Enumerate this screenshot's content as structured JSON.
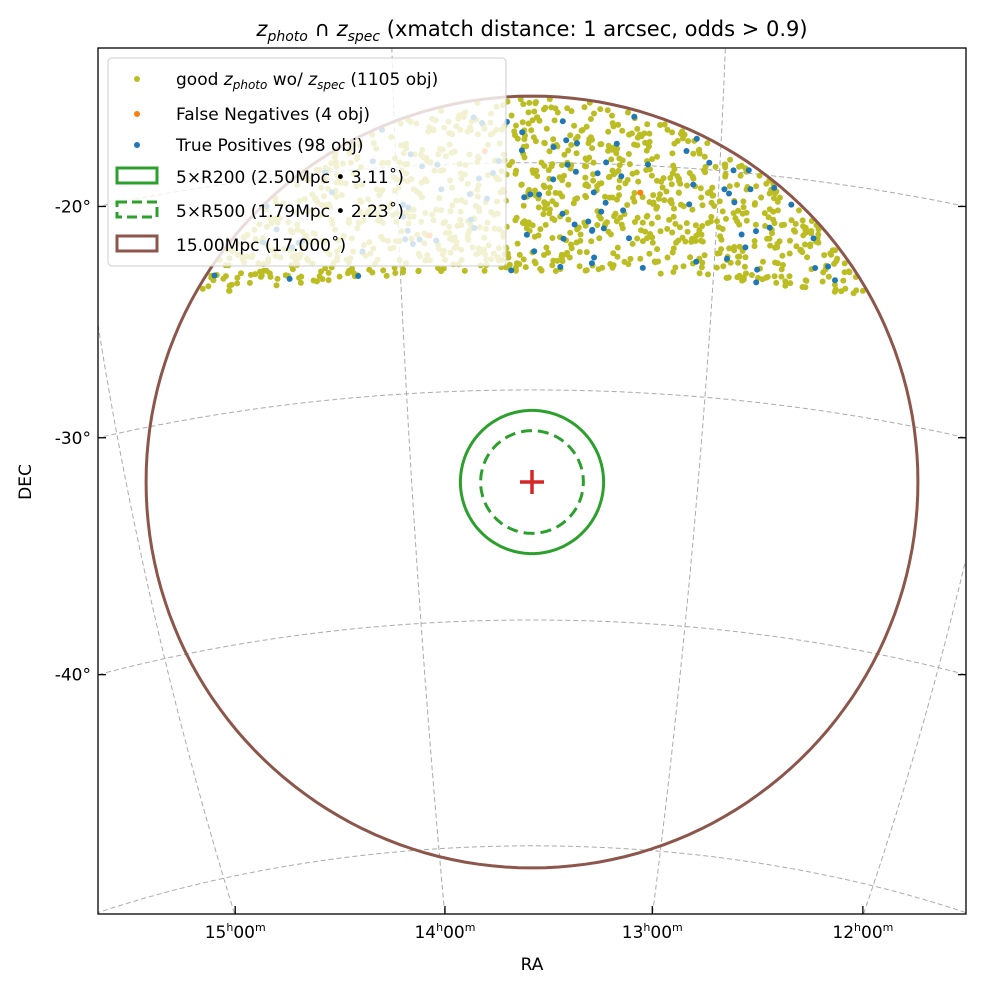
{
  "chart_data": {
    "type": "scatter",
    "title": {
      "z1": "z",
      "z1_sub": "photo",
      "cap": " ∩ ",
      "z2": "z",
      "z2_sub": "spec",
      "rest": " (xmatch distance: 1 arcsec, odds > 0.9)"
    },
    "xlabel": "RA",
    "ylabel": "DEC",
    "projection_center": {
      "ra_hours": 13.58,
      "dec_deg": -34.0
    },
    "xticks": [
      {
        "ra": 15,
        "h": "15",
        "m": "00"
      },
      {
        "ra": 14,
        "h": "14",
        "m": "00"
      },
      {
        "ra": 13,
        "h": "13",
        "m": "00"
      },
      {
        "ra": 12,
        "h": "12",
        "m": "00"
      }
    ],
    "yticks": [
      {
        "dec": -20,
        "label": "-20°"
      },
      {
        "dec": -30,
        "label": "-30°"
      },
      {
        "dec": -40,
        "label": "-40°"
      }
    ],
    "grid": true,
    "grid_dec_lines": [
      -10,
      -20,
      -30,
      -40,
      -50,
      -60
    ],
    "grid_ra_lines": [
      11,
      12,
      13,
      14,
      15,
      16
    ],
    "legend_position": "top-left",
    "series": [
      {
        "name": "good",
        "sub_a": "photo",
        "mid": " wo/ ",
        "sub_b": "spec",
        "tail": " (1105 obj)",
        "count": 1105,
        "color": "#bcbd22",
        "dec_range": [
          -24.8,
          -15.5
        ]
      },
      {
        "name": "False Negatives (4 obj)",
        "count": 4,
        "color": "#ff7f0e",
        "dec_range": [
          -24.5,
          -19
        ]
      },
      {
        "name": "True Positives (98 obj)",
        "count": 98,
        "color": "#1f77b4",
        "dec_range": [
          -24.8,
          -15.5
        ]
      }
    ],
    "circles": [
      {
        "label": "5×R200 (2.50Mpc • 3.11˚)",
        "radius_deg": 3.11,
        "color": "#2ca02c",
        "style": "solid"
      },
      {
        "label": "5×R500 (1.79Mpc • 2.23˚)",
        "radius_deg": 2.23,
        "color": "#2ca02c",
        "style": "dashed"
      },
      {
        "label": "15.00Mpc (17.000˚)",
        "radius_deg": 17.0,
        "color": "#8c564b",
        "style": "solid"
      }
    ],
    "center_marker": {
      "symbol": "+",
      "color": "#d62728"
    }
  }
}
